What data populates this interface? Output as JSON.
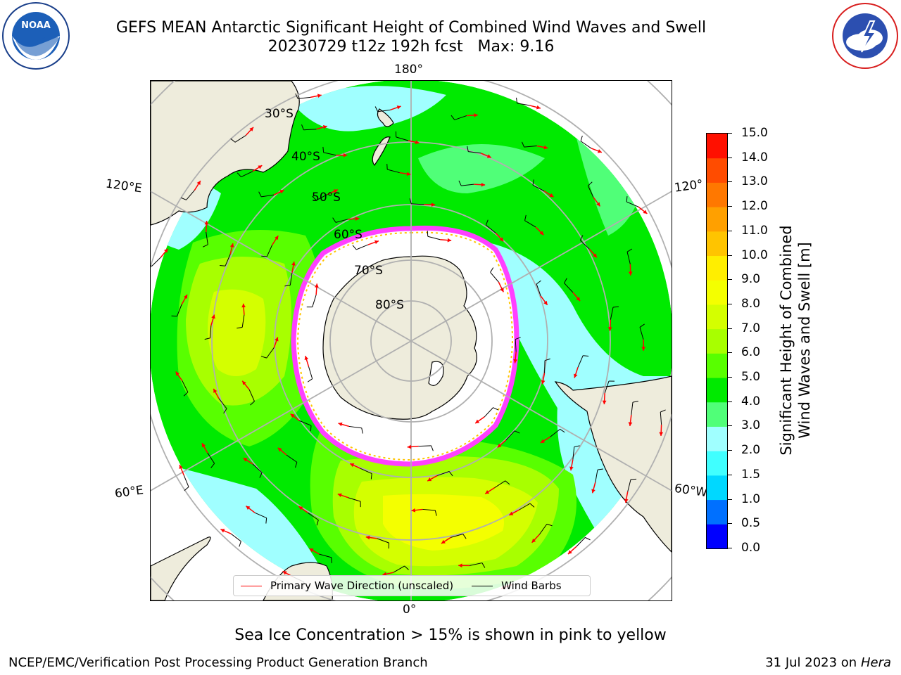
{
  "header": {
    "title_line1": "GEFS MEAN Antarctic Significant Height of Combined Wind Waves and Swell",
    "title_line2": "20230729 t12z 192h fcst   Max: 9.16",
    "left_logo": {
      "name": "noaa-logo",
      "text": "NOAA"
    },
    "right_logo": {
      "name": "national-weather-service-logo",
      "text": "NATIONAL WEATHER SERVICE"
    }
  },
  "map": {
    "projection": "south-polar-stereographic",
    "longitude_labels": {
      "top": "180°",
      "bottom": "0°",
      "left_upper": "120°E",
      "left_lower": "60°E",
      "right_upper": "120°",
      "right_lower": "60°W"
    },
    "latitude_labels": [
      "30°S",
      "40°S",
      "50°S",
      "60°S",
      "70°S",
      "80°S"
    ],
    "colors": {
      "land": "#eeecdc",
      "ocean_background": "#ffffff",
      "grid": "#b0b0b0"
    }
  },
  "legend": {
    "items": [
      {
        "label": "Primary Wave Direction (unscaled)",
        "color": "#ff0000"
      },
      {
        "label": "Wind Barbs",
        "color": "#000000"
      }
    ]
  },
  "colorbar": {
    "title_line1": "Significant Height of Combined",
    "title_line2": "Wind Waves and Swell [m]",
    "ticks": [
      "0.0",
      "0.5",
      "1.0",
      "1.5",
      "2.0",
      "3.0",
      "4.0",
      "5.0",
      "6.0",
      "7.0",
      "8.0",
      "9.0",
      "10.0",
      "11.0",
      "12.0",
      "13.0",
      "14.0",
      "15.0"
    ],
    "colors": [
      "#0000ff",
      "#0070ff",
      "#00d8ff",
      "#40ffff",
      "#a0ffff",
      "#50ff78",
      "#00ea00",
      "#58ff00",
      "#a8ff00",
      "#d4ff00",
      "#f4ff00",
      "#ffee00",
      "#ffc400",
      "#ffa000",
      "#ff7800",
      "#ff4c00",
      "#ff1000"
    ]
  },
  "footer": {
    "note": "Sea Ice Concentration > 15% is shown in pink to yellow",
    "left": "NCEP/EMC/Verification Post Processing Product Generation Branch",
    "right_date": "31 Jul 2023 on ",
    "right_host": "Hera"
  }
}
